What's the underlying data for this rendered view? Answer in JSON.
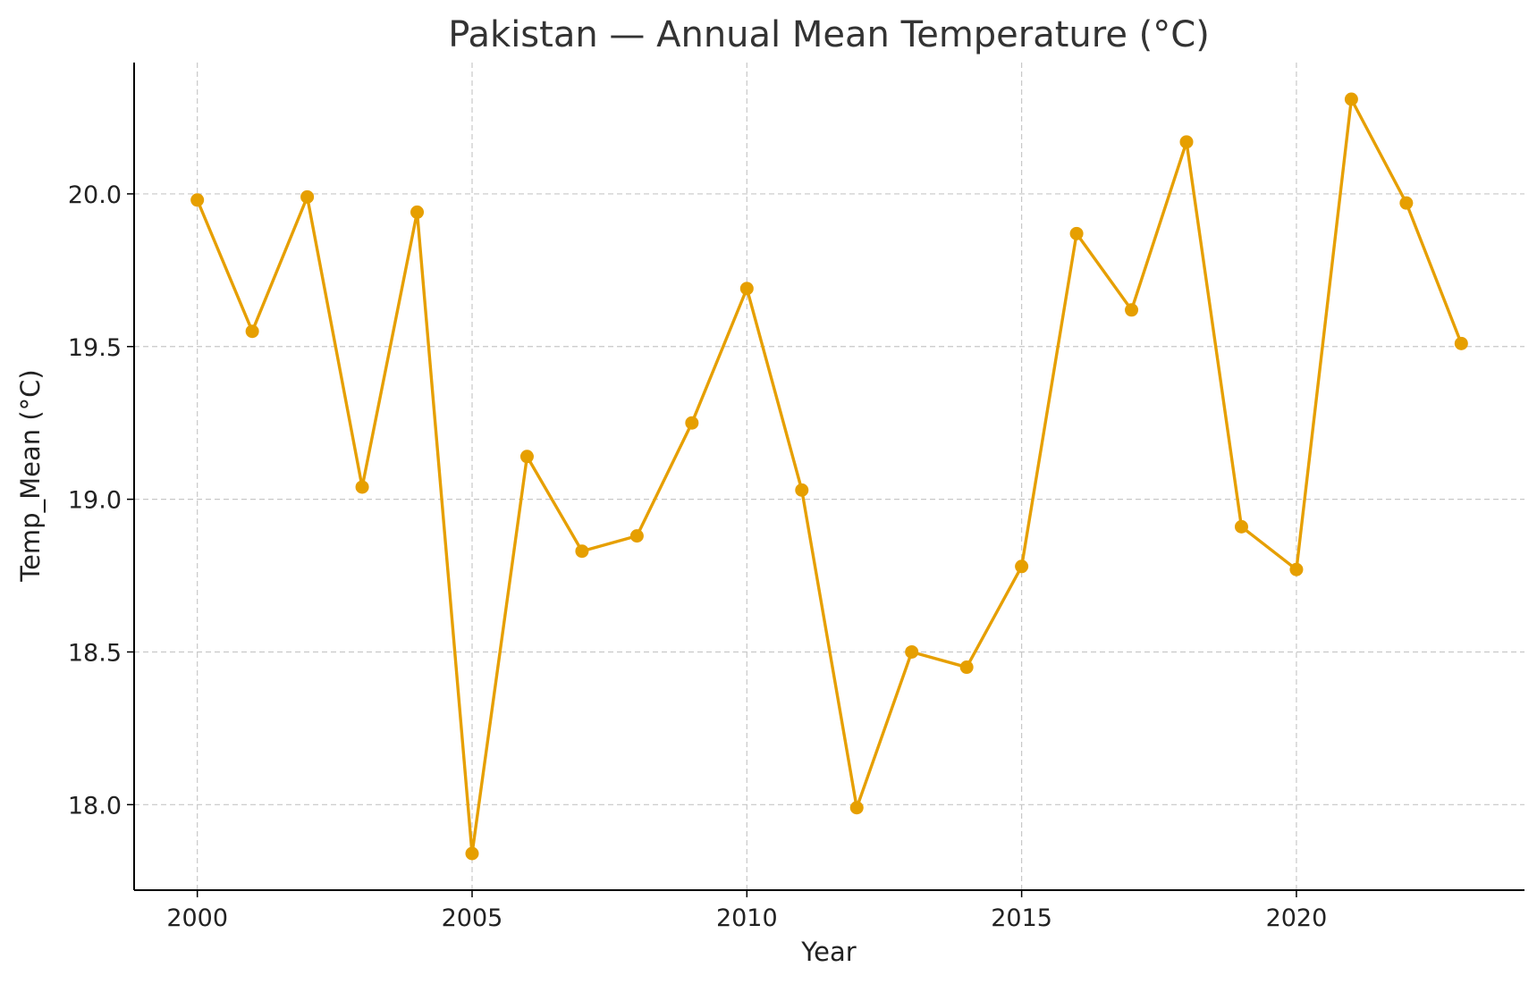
{
  "chart_data": {
    "type": "line",
    "title": "Pakistan — Annual Mean Temperature (°C)",
    "xlabel": "Year",
    "ylabel": "Temp_Mean (°C)",
    "xlim": [
      1998.85,
      2024.15
    ],
    "ylim": [
      17.72,
      20.43
    ],
    "xticks": [
      2000,
      2005,
      2010,
      2015,
      2020
    ],
    "yticks": [
      18.0,
      18.5,
      19.0,
      19.5,
      20.0
    ],
    "xtick_labels": [
      "2000",
      "2005",
      "2010",
      "2015",
      "2020"
    ],
    "ytick_labels": [
      "18.0",
      "18.5",
      "19.0",
      "19.5",
      "20.0"
    ],
    "grid": true,
    "color": "#E69F00",
    "series": [
      {
        "x": [
          2000,
          2001,
          2002,
          2003,
          2004,
          2005,
          2006,
          2007,
          2008,
          2009,
          2010,
          2011,
          2012,
          2013,
          2014,
          2015,
          2016,
          2017,
          2018,
          2019,
          2020,
          2021,
          2022,
          2023
        ],
        "values": [
          19.98,
          19.55,
          19.99,
          19.04,
          19.94,
          17.84,
          19.14,
          18.83,
          18.88,
          19.25,
          19.69,
          19.03,
          17.99,
          18.5,
          18.45,
          18.78,
          19.87,
          19.62,
          20.17,
          18.91,
          18.77,
          20.31,
          19.97,
          19.51
        ]
      }
    ]
  }
}
